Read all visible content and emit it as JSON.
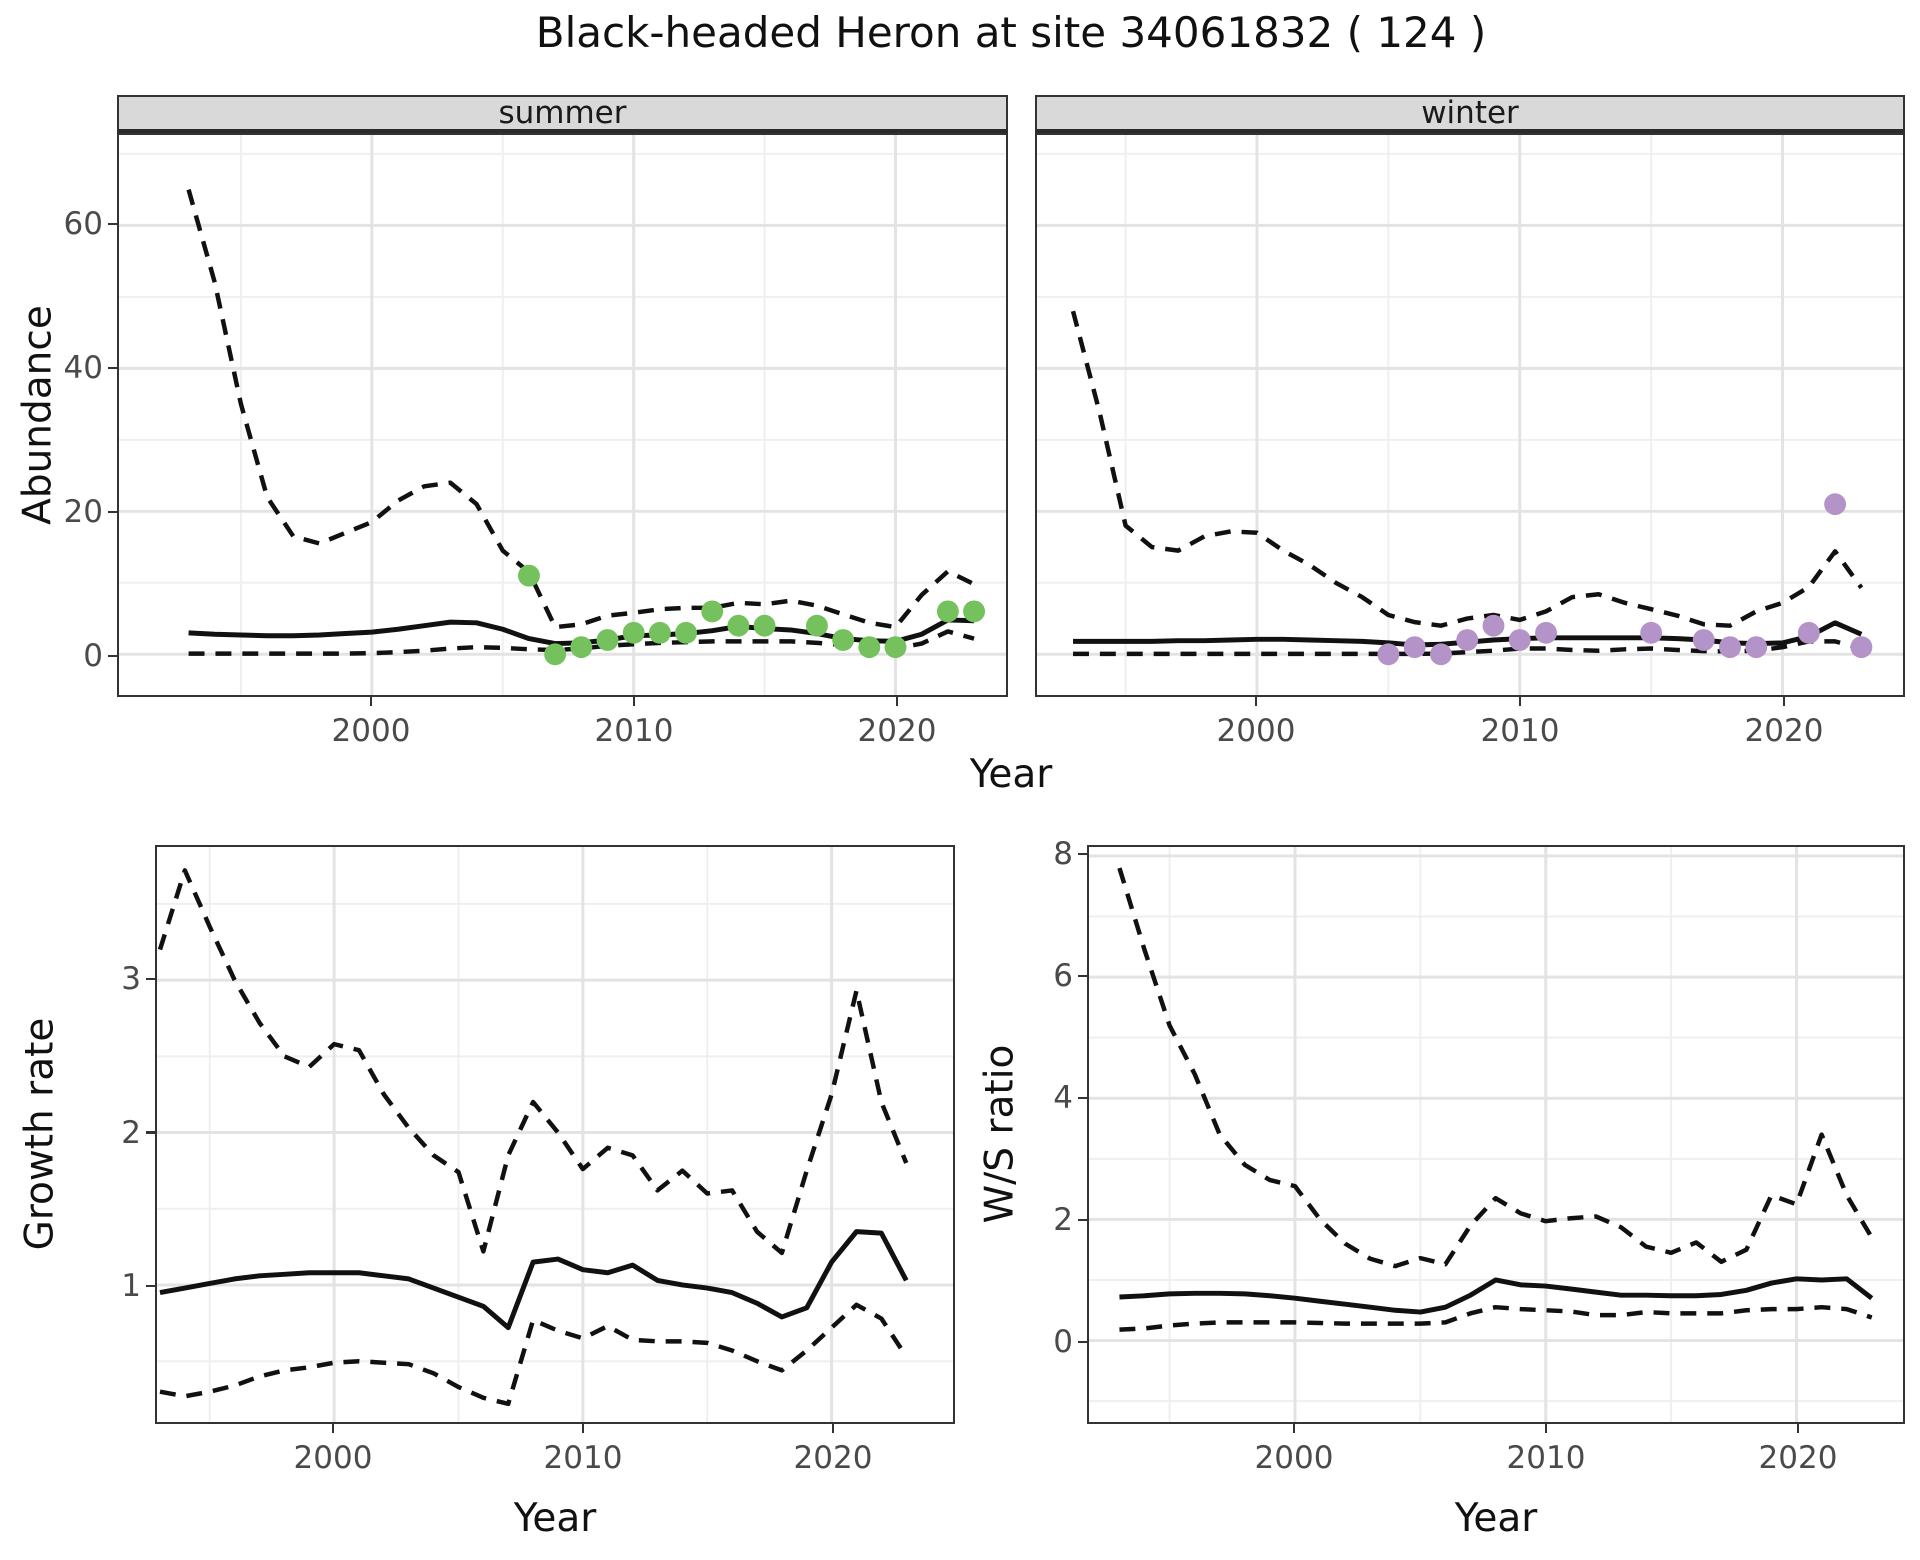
{
  "title": "Black-headed Heron at site 34061832 ( 124 )",
  "colors": {
    "summer_points": "#74c15e",
    "winter_points": "#b493c8",
    "line": "#111111",
    "strip_bg": "#d9d9d9",
    "grid_major": "#e3e3e3",
    "grid_minor": "#efefef",
    "axis_text": "#4a4a4a"
  },
  "chart_data": [
    {
      "id": "summer",
      "type": "line",
      "facet_label": "summer",
      "xlabel": "Year",
      "ylabel": "Abundance",
      "xlim": [
        1990.3,
        2024.3
      ],
      "ylim": [
        -5.7,
        72.6
      ],
      "x_ticks": [
        2000,
        2010,
        2020
      ],
      "x_minor": [
        1995,
        2005,
        2015,
        2025
      ],
      "y_ticks": [
        0,
        20,
        40,
        60
      ],
      "y_minor": [
        10,
        30,
        50,
        70
      ],
      "grid": true,
      "legend": "none",
      "years": [
        1993,
        1994,
        1995,
        1996,
        1997,
        1998,
        1999,
        2000,
        2001,
        2002,
        2003,
        2004,
        2005,
        2006,
        2007,
        2008,
        2009,
        2010,
        2011,
        2012,
        2013,
        2014,
        2015,
        2016,
        2017,
        2018,
        2019,
        2020,
        2021,
        2022,
        2023
      ],
      "series": [
        {
          "name": "upper_95ci",
          "style": "dashed",
          "values": [
            65,
            52,
            35,
            22,
            16.5,
            15.5,
            17,
            18.5,
            21.5,
            23.5,
            24,
            21,
            14.5,
            11.5,
            3.8,
            4.2,
            5.4,
            5.8,
            6.3,
            6.5,
            6.5,
            7.2,
            7.0,
            7.5,
            6.8,
            5.6,
            4.4,
            3.8,
            8.3,
            11.6,
            9.8
          ]
        },
        {
          "name": "median",
          "style": "solid",
          "values": [
            3.0,
            2.8,
            2.7,
            2.6,
            2.6,
            2.7,
            2.9,
            3.1,
            3.5,
            4.0,
            4.5,
            4.4,
            3.5,
            2.2,
            1.5,
            1.6,
            2.0,
            2.6,
            2.7,
            2.9,
            3.3,
            3.9,
            3.6,
            3.4,
            2.9,
            2.2,
            1.9,
            1.8,
            2.8,
            4.8,
            4.7
          ]
        },
        {
          "name": "lower_95ci",
          "style": "dashed",
          "values": [
            0.1,
            0.1,
            0.1,
            0.1,
            0.1,
            0.1,
            0.1,
            0.15,
            0.3,
            0.5,
            0.8,
            1.0,
            0.9,
            0.7,
            0.6,
            0.8,
            1.2,
            1.4,
            1.6,
            1.7,
            1.8,
            1.8,
            1.8,
            1.8,
            1.6,
            1.3,
            0.9,
            0.8,
            1.5,
            3.2,
            2.2
          ]
        }
      ],
      "points": {
        "label": "observed-counts-summer",
        "color": "#74c15e",
        "years": [
          2006,
          2007,
          2008,
          2009,
          2010,
          2011,
          2012,
          2013,
          2014,
          2015,
          2017,
          2018,
          2019,
          2020,
          2022,
          2023
        ],
        "values": [
          11,
          0,
          1,
          2,
          3,
          3,
          3,
          6,
          4,
          4,
          4,
          2,
          1,
          1,
          6,
          6
        ]
      }
    },
    {
      "id": "winter",
      "type": "line",
      "facet_label": "winter",
      "xlabel": "Year",
      "ylabel": "Abundance",
      "xlim": [
        1991.6,
        2024.6
      ],
      "ylim": [
        -5.7,
        72.6
      ],
      "x_ticks": [
        2000,
        2010,
        2020
      ],
      "x_minor": [
        1995,
        2005,
        2015,
        2025
      ],
      "y_ticks": [
        0,
        20,
        40,
        60
      ],
      "y_minor": [
        10,
        30,
        50,
        70
      ],
      "grid": true,
      "legend": "none",
      "years": [
        1993,
        1994,
        1995,
        1996,
        1997,
        1998,
        1999,
        2000,
        2001,
        2002,
        2003,
        2004,
        2005,
        2006,
        2007,
        2008,
        2009,
        2010,
        2011,
        2012,
        2013,
        2014,
        2015,
        2016,
        2017,
        2018,
        2019,
        2020,
        2021,
        2022,
        2023
      ],
      "series": [
        {
          "name": "upper_95ci",
          "style": "dashed",
          "values": [
            48,
            34,
            18,
            15,
            14.5,
            16.5,
            17.2,
            17,
            14.5,
            12.5,
            10,
            8,
            5.5,
            4.5,
            4.0,
            5.0,
            5.5,
            4.8,
            6.0,
            8.0,
            8.4,
            7.2,
            6.3,
            5.4,
            4.2,
            4.0,
            6.0,
            7.2,
            9.4,
            14.4,
            9.3
          ]
        },
        {
          "name": "median",
          "style": "solid",
          "values": [
            1.8,
            1.8,
            1.8,
            1.8,
            1.9,
            1.9,
            2.0,
            2.1,
            2.1,
            2.0,
            1.9,
            1.8,
            1.6,
            1.3,
            1.4,
            1.7,
            2.0,
            2.2,
            2.3,
            2.3,
            2.3,
            2.3,
            2.3,
            2.2,
            2.0,
            1.6,
            1.5,
            1.6,
            2.5,
            4.4,
            2.8
          ]
        },
        {
          "name": "lower_95ci",
          "style": "dashed",
          "values": [
            0.05,
            0.05,
            0.05,
            0.05,
            0.05,
            0.05,
            0.05,
            0.05,
            0.05,
            0.05,
            0.05,
            0.05,
            0.05,
            0.05,
            0.1,
            0.3,
            0.5,
            0.8,
            0.8,
            0.6,
            0.5,
            0.7,
            0.8,
            0.6,
            0.45,
            0.4,
            0.5,
            1.0,
            1.8,
            1.8,
            0.8
          ]
        }
      ],
      "points": {
        "label": "observed-counts-winter",
        "color": "#b493c8",
        "years": [
          2005,
          2006,
          2007,
          2008,
          2009,
          2010,
          2011,
          2015,
          2017,
          2018,
          2019,
          2021,
          2022,
          2023
        ],
        "values": [
          0,
          1,
          0,
          2,
          4,
          2,
          3,
          3,
          2,
          1,
          1,
          3,
          21,
          1
        ]
      }
    },
    {
      "id": "growth",
      "type": "line",
      "facet_label": "",
      "xlabel": "Year",
      "ylabel": "Growth rate",
      "xlim": [
        1992.9,
        2025.0
      ],
      "ylim": [
        0.1,
        3.87
      ],
      "x_ticks": [
        2000,
        2010,
        2020
      ],
      "x_minor": [
        1995,
        2005,
        2015,
        2025
      ],
      "y_ticks": [
        1,
        2,
        3
      ],
      "y_minor": [
        0.5,
        1.5,
        2.5,
        3.5
      ],
      "grid": true,
      "legend": "none",
      "years": [
        1993,
        1994,
        1995,
        1996,
        1997,
        1998,
        1999,
        2000,
        2001,
        2002,
        2003,
        2004,
        2005,
        2006,
        2007,
        2008,
        2009,
        2010,
        2011,
        2012,
        2013,
        2014,
        2015,
        2016,
        2017,
        2018,
        2019,
        2020,
        2021,
        2022,
        2023
      ],
      "series": [
        {
          "name": "upper_95ci",
          "style": "dashed",
          "values": [
            3.2,
            3.72,
            3.35,
            3.0,
            2.72,
            2.5,
            2.43,
            2.58,
            2.54,
            2.25,
            2.03,
            1.85,
            1.74,
            1.22,
            1.85,
            2.2,
            2.0,
            1.76,
            1.9,
            1.85,
            1.62,
            1.75,
            1.6,
            1.62,
            1.35,
            1.21,
            1.75,
            2.25,
            2.93,
            2.2,
            1.8
          ]
        },
        {
          "name": "median",
          "style": "solid",
          "values": [
            0.95,
            0.98,
            1.01,
            1.04,
            1.06,
            1.07,
            1.08,
            1.08,
            1.08,
            1.06,
            1.04,
            0.98,
            0.92,
            0.86,
            0.72,
            1.15,
            1.17,
            1.1,
            1.08,
            1.13,
            1.03,
            1.0,
            0.98,
            0.95,
            0.88,
            0.79,
            0.85,
            1.15,
            1.35,
            1.34,
            1.03
          ]
        },
        {
          "name": "lower_95ci",
          "style": "dashed",
          "values": [
            0.3,
            0.27,
            0.3,
            0.34,
            0.4,
            0.44,
            0.46,
            0.49,
            0.5,
            0.49,
            0.48,
            0.42,
            0.33,
            0.26,
            0.22,
            0.77,
            0.7,
            0.65,
            0.73,
            0.64,
            0.63,
            0.63,
            0.62,
            0.57,
            0.5,
            0.44,
            0.57,
            0.72,
            0.87,
            0.78,
            0.53
          ]
        }
      ]
    },
    {
      "id": "ws",
      "type": "line",
      "facet_label": "",
      "xlabel": "Year",
      "ylabel": "W/S ratio",
      "xlim": [
        1991.8,
        2024.2
      ],
      "ylim": [
        -1.34,
        8.15
      ],
      "x_ticks": [
        2000,
        2010,
        2020
      ],
      "x_minor": [
        1995,
        2005,
        2015,
        2025
      ],
      "y_ticks": [
        0,
        2,
        4,
        6,
        8
      ],
      "y_minor": [
        -1,
        1,
        3,
        5,
        7
      ],
      "grid": true,
      "legend": "none",
      "years": [
        1993,
        1994,
        1995,
        1996,
        1997,
        1998,
        1999,
        2000,
        2001,
        2002,
        2003,
        2004,
        2005,
        2006,
        2007,
        2008,
        2009,
        2010,
        2011,
        2012,
        2013,
        2014,
        2015,
        2016,
        2017,
        2018,
        2019,
        2020,
        2021,
        2022,
        2023
      ],
      "series": [
        {
          "name": "upper_95ci",
          "style": "dashed",
          "values": [
            7.8,
            6.45,
            5.2,
            4.4,
            3.4,
            2.9,
            2.65,
            2.55,
            2.0,
            1.6,
            1.35,
            1.23,
            1.36,
            1.26,
            1.9,
            2.35,
            2.1,
            1.97,
            2.02,
            2.05,
            1.87,
            1.55,
            1.45,
            1.62,
            1.3,
            1.5,
            2.4,
            2.25,
            3.4,
            2.4,
            1.7
          ]
        },
        {
          "name": "median",
          "style": "solid",
          "values": [
            0.72,
            0.74,
            0.77,
            0.78,
            0.78,
            0.77,
            0.74,
            0.7,
            0.65,
            0.6,
            0.55,
            0.5,
            0.47,
            0.55,
            0.75,
            1.0,
            0.92,
            0.9,
            0.85,
            0.8,
            0.75,
            0.75,
            0.74,
            0.74,
            0.76,
            0.83,
            0.95,
            1.02,
            1.0,
            1.02,
            0.7
          ]
        },
        {
          "name": "lower_95ci",
          "style": "dashed",
          "values": [
            0.18,
            0.2,
            0.25,
            0.28,
            0.3,
            0.3,
            0.3,
            0.3,
            0.29,
            0.28,
            0.28,
            0.28,
            0.28,
            0.3,
            0.45,
            0.55,
            0.52,
            0.5,
            0.48,
            0.42,
            0.42,
            0.47,
            0.45,
            0.45,
            0.45,
            0.5,
            0.52,
            0.52,
            0.55,
            0.52,
            0.38
          ]
        }
      ]
    }
  ]
}
